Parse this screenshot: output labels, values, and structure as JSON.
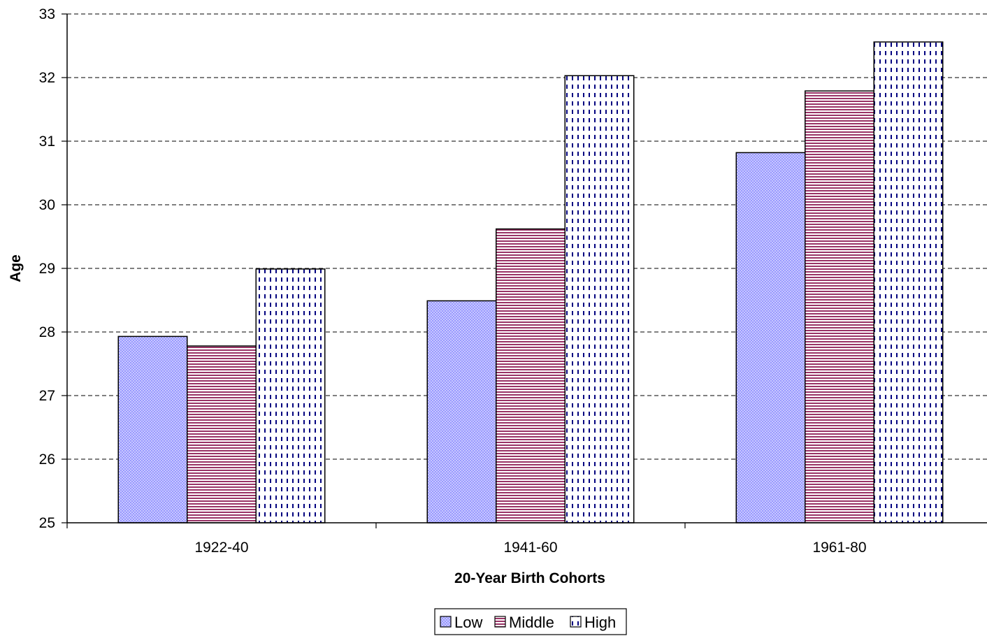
{
  "chart_data": {
    "type": "bar",
    "xlabel": "20-Year Birth Cohorts",
    "ylabel": "Age",
    "categories": [
      "1922-40",
      "1941-60",
      "1961-80"
    ],
    "series": [
      {
        "name": "Low",
        "values": [
          27.93,
          28.49,
          30.82
        ],
        "color": "#9999ff",
        "pattern": "dots"
      },
      {
        "name": "Middle",
        "values": [
          27.78,
          29.62,
          31.79
        ],
        "color": "#993366",
        "pattern": "horizontal-lines"
      },
      {
        "name": "High",
        "values": [
          28.99,
          32.03,
          32.56
        ],
        "color": "#000080",
        "pattern": "vertical-dashes"
      }
    ],
    "ylim": [
      25,
      33
    ],
    "yticks": [
      25,
      26,
      27,
      28,
      29,
      30,
      31,
      32,
      33
    ],
    "grid": true,
    "grid_style": "dashed",
    "legend_position": "bottom"
  }
}
